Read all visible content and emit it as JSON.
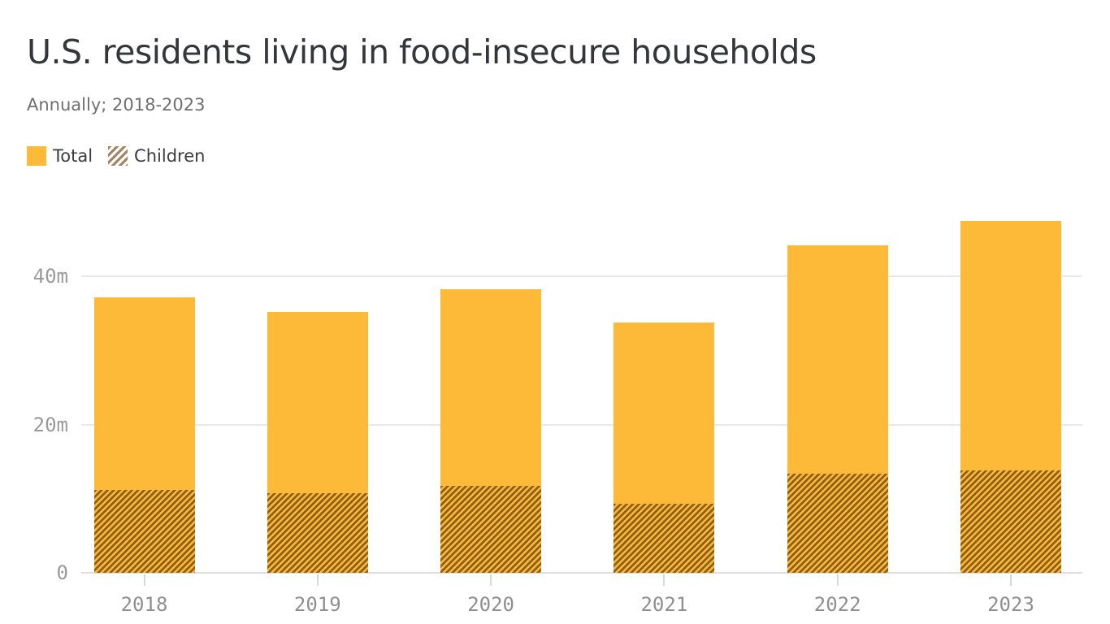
{
  "header": {
    "title": "U.S. residents living in food-insecure households",
    "subtitle": "Annually; 2018-2023"
  },
  "legend": {
    "total_label": "Total",
    "children_label": "Children"
  },
  "chart_data": {
    "type": "bar",
    "subtype": "overlay-stacked-hatched",
    "title": "U.S. residents living in food-insecure households",
    "subtitle": "Annually; 2018-2023",
    "categories": [
      "2018",
      "2019",
      "2020",
      "2021",
      "2022",
      "2023"
    ],
    "series": [
      {
        "name": "Total",
        "values": [
          37.2,
          35.2,
          38.3,
          33.8,
          44.2,
          47.4
        ]
      },
      {
        "name": "Children",
        "values": [
          11.2,
          10.7,
          11.7,
          9.3,
          13.4,
          13.8
        ]
      }
    ],
    "unit": "millions of people",
    "xlabel": "",
    "ylabel": "",
    "ylim": [
      0,
      48
    ],
    "yticks": [
      {
        "value": 0,
        "label": "0"
      },
      {
        "value": 20,
        "label": "20m"
      },
      {
        "value": 40,
        "label": "40m"
      }
    ],
    "grid": "horizontal",
    "legend_position": "top-left",
    "colors": {
      "total_fill": "#FDBA38",
      "children_stripe": "#8E601A",
      "legend_children_stripe": "#A38565",
      "gridline": "#e9e9e9",
      "axis_text": "#9a9a9a",
      "title_text": "#35363a"
    }
  }
}
